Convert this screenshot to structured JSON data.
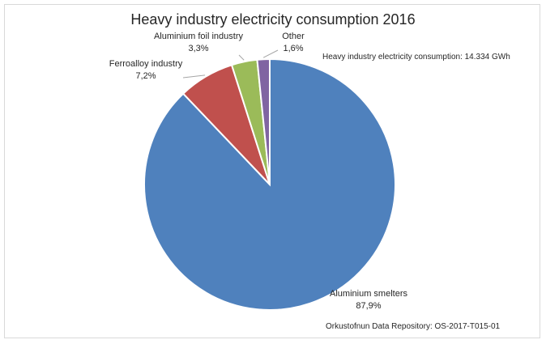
{
  "chart_data": {
    "type": "pie",
    "title": "Heavy industry electricity consumption 2016",
    "total_note": "Heavy industry electricity consumption: 14.334 GWh",
    "source_note": "Orkustofnun Data Repository: OS-2017-T015-01",
    "slices": [
      {
        "name": "Aluminium smelters",
        "value": 87.9,
        "value_label": "87,9%",
        "color": "#4F81BD"
      },
      {
        "name": "Ferroalloy industry",
        "value": 7.2,
        "value_label": "7,2%",
        "color": "#C0504D"
      },
      {
        "name": "Aluminium foil industry",
        "value": 3.3,
        "value_label": "3,3%",
        "color": "#9BBB59"
      },
      {
        "name": "Other",
        "value": 1.6,
        "value_label": "1,6%",
        "color": "#8064A2"
      }
    ]
  }
}
